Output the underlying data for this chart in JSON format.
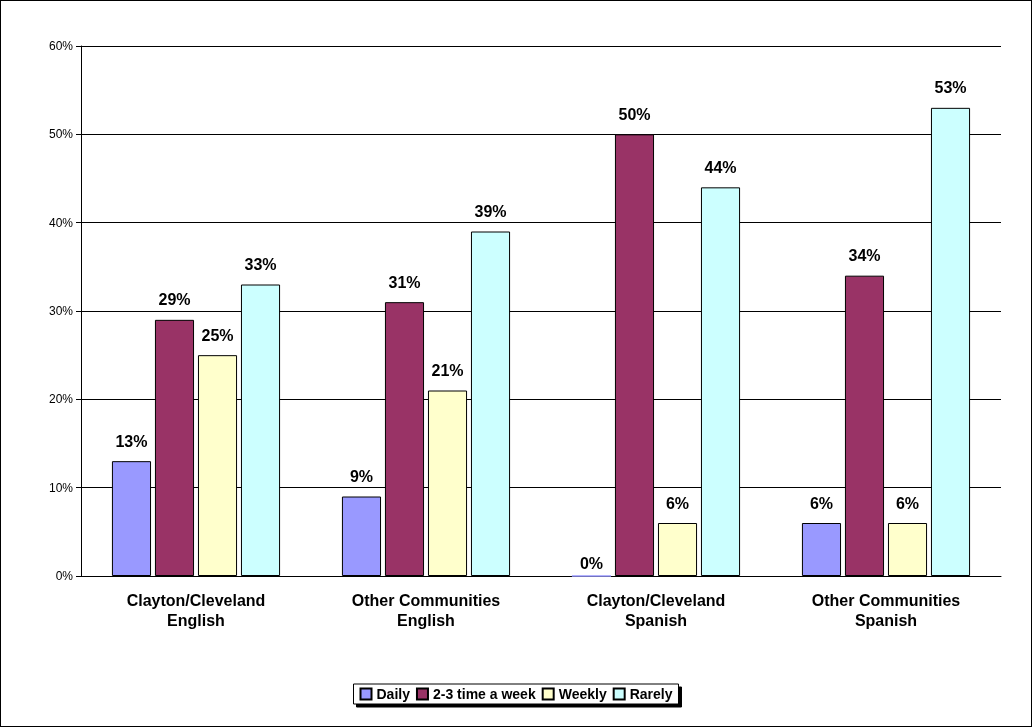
{
  "chart_data": {
    "type": "bar",
    "categories": [
      "Clayton/Cleveland\nEnglish",
      "Other Communities\nEnglish",
      "Clayton/Cleveland\nSpanish",
      "Other Communities\nSpanish"
    ],
    "series": [
      {
        "name": "Daily",
        "color": "#9999ff",
        "values": [
          13,
          9,
          0,
          6
        ],
        "value_labels": [
          "13%",
          "9%",
          "0%",
          "6%"
        ]
      },
      {
        "name": "2-3 time a week",
        "color": "#993366",
        "values": [
          29,
          31,
          50,
          34
        ],
        "value_labels": [
          "29%",
          "31%",
          "50%",
          "34%"
        ]
      },
      {
        "name": "Weekly",
        "color": "#ffffcc",
        "values": [
          25,
          21,
          6,
          6
        ],
        "value_labels": [
          "25%",
          "21%",
          "6%",
          "6%"
        ]
      },
      {
        "name": "Rarely",
        "color": "#ccffff",
        "values": [
          33,
          39,
          44,
          53
        ],
        "value_labels": [
          "33%",
          "39%",
          "44%",
          "53%"
        ]
      }
    ],
    "ylim": [
      0,
      60
    ],
    "yticks": [
      {
        "value": 0,
        "label": "0%"
      },
      {
        "value": 10,
        "label": "10%"
      },
      {
        "value": 20,
        "label": "20%"
      },
      {
        "value": 30,
        "label": "30%"
      },
      {
        "value": 40,
        "label": "40%"
      },
      {
        "value": 50,
        "label": "50%"
      },
      {
        "value": 60,
        "label": "60%"
      }
    ],
    "grid": "y",
    "legend": "bottom"
  }
}
